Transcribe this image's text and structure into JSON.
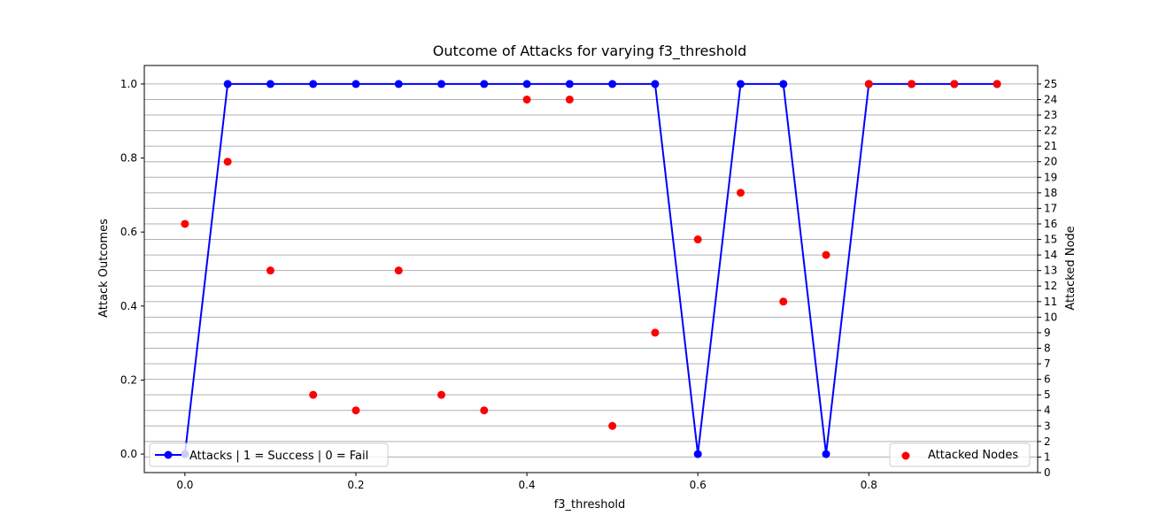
{
  "chart_data": {
    "type": "line",
    "title": "Outcome of Attacks for varying f3_threshold",
    "xlabel": "f3_threshold",
    "ylabel": "Attack Outcomes",
    "y2label": "Attacked Node",
    "xlim": [
      -0.0475,
      0.9975
    ],
    "ylim": [
      -0.05,
      1.05
    ],
    "y2lim": [
      0,
      25.0
    ],
    "x_ticks": [
      "0.0",
      "0.2",
      "0.4",
      "0.6",
      "0.8"
    ],
    "x_tick_values": [
      0.0,
      0.2,
      0.4,
      0.6,
      0.8
    ],
    "y_ticks": [
      "0.0",
      "0.2",
      "0.4",
      "0.6",
      "0.8",
      "1.0"
    ],
    "y_tick_values": [
      0.0,
      0.2,
      0.4,
      0.6,
      0.8,
      1.0
    ],
    "y2_ticks": [
      "0",
      "1",
      "2",
      "3",
      "4",
      "5",
      "6",
      "7",
      "8",
      "9",
      "10",
      "11",
      "12",
      "13",
      "14",
      "15",
      "16",
      "17",
      "18",
      "19",
      "20",
      "21",
      "22",
      "23",
      "24",
      "25"
    ],
    "y2_grid": true,
    "x": [
      0.0,
      0.05,
      0.1,
      0.15,
      0.2,
      0.25,
      0.3,
      0.35,
      0.4,
      0.45,
      0.5,
      0.55,
      0.6,
      0.65,
      0.7,
      0.75,
      0.8,
      0.85,
      0.9,
      0.95
    ],
    "series": [
      {
        "name": "Attacks | 1 = Success | 0 = Fail",
        "axis": "left",
        "style": "line-marker",
        "color": "#0000ff",
        "values": [
          0,
          1,
          1,
          1,
          1,
          1,
          1,
          1,
          1,
          1,
          1,
          1,
          0,
          1,
          1,
          0,
          1,
          1,
          1,
          1
        ]
      },
      {
        "name": "Attacked Nodes",
        "axis": "right",
        "style": "scatter",
        "color": "#ff0000",
        "values": [
          16,
          20,
          13,
          5,
          4,
          13,
          5,
          4,
          24,
          24,
          3,
          9,
          15,
          18,
          11,
          14,
          25,
          25,
          25,
          25
        ]
      }
    ],
    "legends": [
      {
        "placement": "lower left",
        "series": 0
      },
      {
        "placement": "lower right",
        "series": 1
      }
    ]
  }
}
